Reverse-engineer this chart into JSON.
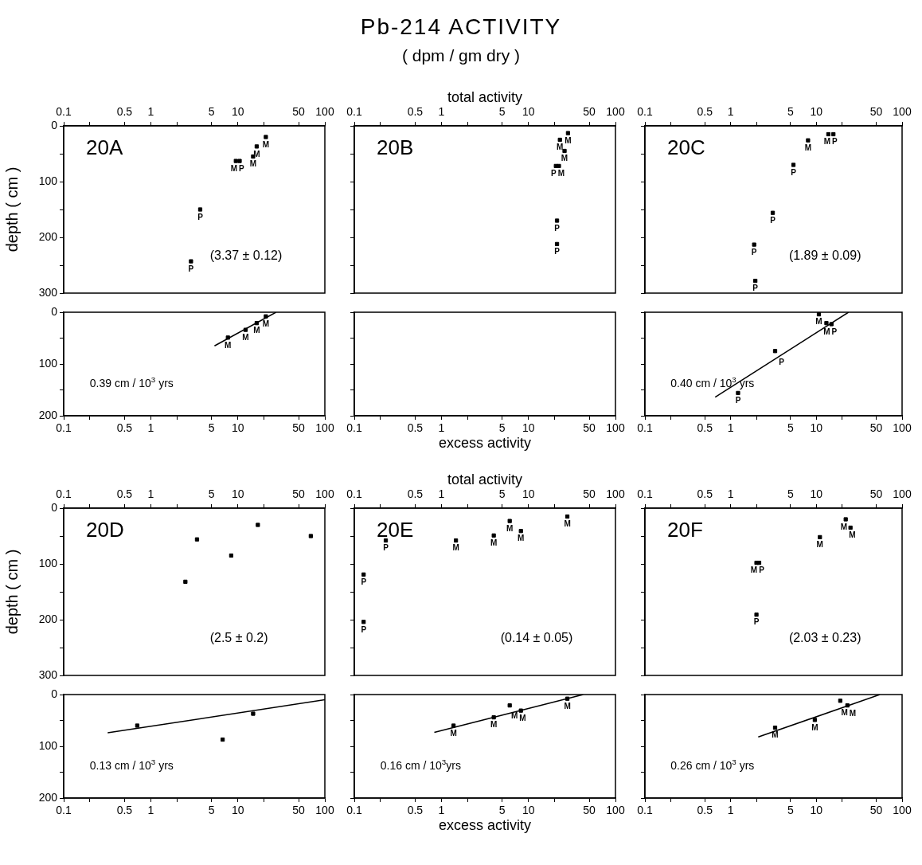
{
  "chart_data": [
    {
      "type": "scatter",
      "ylabel": "depth ( cm )",
      "log": "x",
      "xlim": [
        0.1,
        100
      ],
      "xticks": [
        0.1,
        {
          "value": 0.2,
          "label": null
        },
        0.5,
        1,
        {
          "value": 2,
          "label": null
        },
        5,
        10,
        {
          "value": 20,
          "label": null
        },
        50,
        100
      ],
      "ylim": [
        300,
        0
      ],
      "yticks": [
        0,
        {
          "value": 50,
          "label": null
        },
        100,
        {
          "value": 150,
          "label": null
        },
        200,
        {
          "value": 250,
          "label": null
        },
        300
      ],
      "marker": "square",
      "annotations": [
        "20A",
        "(3.37 ± 0.12)"
      ],
      "series": [
        {
          "name": "M",
          "color": "#000000",
          "x": [
            21,
            16.5,
            15,
            9.5
          ],
          "values": [
            20,
            37,
            55,
            63
          ]
        },
        {
          "name": "P",
          "color": "#000000",
          "x": [
            10.5,
            3.7,
            2.9
          ],
          "values": [
            63,
            150,
            243
          ]
        }
      ]
    },
    {
      "type": "scatter",
      "title": "Pb-214 ACTIVITY",
      "subtitle": "( dpm / gm dry )",
      "xlabel": "total activity",
      "tick_labels": "x",
      "log": "x",
      "xlim": [
        0.1,
        100
      ],
      "xticks": [
        0.1,
        {
          "value": 0.2,
          "label": null
        },
        0.5,
        1,
        {
          "value": 2,
          "label": null
        },
        5,
        10,
        {
          "value": 20,
          "label": null
        },
        50,
        100
      ],
      "ylim": [
        300,
        0
      ],
      "yticks": [
        0,
        {
          "value": 50,
          "label": null
        },
        100,
        {
          "value": 150,
          "label": null
        },
        200,
        {
          "value": 250,
          "label": null
        },
        300
      ],
      "marker": "square",
      "annotations": [
        "20B"
      ],
      "series": [
        {
          "name": "M",
          "color": "#000000",
          "x": [
            28.5,
            23,
            26,
            22.4
          ],
          "values": [
            13,
            25,
            45,
            72
          ]
        },
        {
          "name": "P",
          "color": "#000000",
          "x": [
            20.7,
            21.3,
            21.3
          ],
          "values": [
            72,
            170,
            212
          ]
        }
      ]
    },
    {
      "type": "scatter",
      "tick_labels": "x",
      "log": "x",
      "xlim": [
        0.1,
        100
      ],
      "xticks": [
        0.1,
        {
          "value": 0.2,
          "label": null
        },
        0.5,
        1,
        {
          "value": 2,
          "label": null
        },
        5,
        10,
        {
          "value": 20,
          "label": null
        },
        50,
        100
      ],
      "ylim": [
        300,
        0
      ],
      "yticks": [
        0,
        {
          "value": 50,
          "label": null
        },
        100,
        {
          "value": 150,
          "label": null
        },
        200,
        {
          "value": 250,
          "label": null
        },
        300
      ],
      "marker": "square",
      "annotations": [
        "20C",
        "(1.89 ± 0.09)"
      ],
      "series": [
        {
          "name": "M",
          "color": "#000000",
          "x": [
            8,
            13.8
          ],
          "values": [
            26,
            15
          ]
        },
        {
          "name": "P",
          "color": "#000000",
          "x": [
            15.8,
            5.4,
            3.1,
            1.88,
            1.94
          ],
          "values": [
            15,
            70,
            156,
            213,
            278
          ]
        }
      ]
    },
    {
      "type": "scatter",
      "log": "x",
      "xlim": [
        0.1,
        100
      ],
      "xticks": [
        0.1,
        {
          "value": 0.2,
          "label": null
        },
        0.5,
        1,
        {
          "value": 2,
          "label": null
        },
        5,
        10,
        {
          "value": 20,
          "label": null
        },
        50,
        100
      ],
      "ylim": [
        200,
        0
      ],
      "yticks": [
        0,
        {
          "value": 50,
          "label": null
        },
        100,
        {
          "value": 150,
          "label": null
        },
        200
      ],
      "marker": "square",
      "annotations": [
        "0.39 cm / 10$^{3}$ yrs"
      ],
      "series": [
        {
          "name": "M",
          "color": "#000000",
          "x": [
            7.7,
            12.3,
            16.5,
            21
          ],
          "values": [
            49,
            34,
            21,
            8
          ]
        },
        {
          "type": "line",
          "marker": "none",
          "color": "#000000",
          "x": [
            5.4,
            27.5
          ],
          "values": [
            65,
            0
          ]
        }
      ]
    },
    {
      "type": "scatter",
      "xlabel": "excess activity",
      "tick_labels": "x",
      "log": "x",
      "xlim": [
        0.1,
        100
      ],
      "xticks": [
        0.1,
        {
          "value": 0.2,
          "label": null
        },
        0.5,
        1,
        {
          "value": 2,
          "label": null
        },
        5,
        10,
        {
          "value": 20,
          "label": null
        },
        50,
        100
      ],
      "ylim": [
        200,
        0
      ],
      "yticks": [
        0,
        {
          "value": 50,
          "label": null
        },
        100,
        {
          "value": 150,
          "label": null
        },
        200
      ]
    },
    {
      "type": "scatter",
      "tick_labels": "x",
      "log": "x",
      "xlim": [
        0.1,
        100
      ],
      "xticks": [
        0.1,
        {
          "value": 0.2,
          "label": null
        },
        0.5,
        1,
        {
          "value": 2,
          "label": null
        },
        5,
        10,
        {
          "value": 20,
          "label": null
        },
        50,
        100
      ],
      "ylim": [
        200,
        0
      ],
      "yticks": [
        0,
        {
          "value": 50,
          "label": null
        },
        100,
        {
          "value": 150,
          "label": null
        },
        200
      ],
      "marker": "square",
      "annotations": [
        "0.40 cm / 10$^{3}$ yrs"
      ],
      "series": [
        {
          "name": "M",
          "color": "#000000",
          "x": [
            10.7,
            13.1
          ],
          "values": [
            4,
            21
          ]
        },
        {
          "name": "P",
          "color": "#000000",
          "x": [
            15,
            3.3,
            1.22
          ],
          "values": [
            23,
            75,
            156
          ]
        },
        {
          "type": "line",
          "marker": "none",
          "color": "#000000",
          "x": [
            0.66,
            23.7
          ],
          "values": [
            164,
            0
          ]
        }
      ]
    },
    {
      "type": "scatter",
      "ylabel": "depth ( cm )",
      "log": "x",
      "xlim": [
        0.1,
        100
      ],
      "xticks": [
        0.1,
        {
          "value": 0.2,
          "label": null
        },
        0.5,
        1,
        {
          "value": 2,
          "label": null
        },
        5,
        10,
        {
          "value": 20,
          "label": null
        },
        50,
        100
      ],
      "ylim": [
        300,
        0
      ],
      "yticks": [
        0,
        {
          "value": 50,
          "label": null
        },
        100,
        {
          "value": 150,
          "label": null
        },
        200,
        {
          "value": 250,
          "label": null
        },
        300
      ],
      "marker": "square",
      "annotations": [
        "20D",
        "(2.5 ± 0.2)"
      ],
      "series": [
        {
          "color": "#000000",
          "x": [
            3.4,
            8.4,
            2.5,
            17,
            69
          ],
          "values": [
            56,
            85,
            132,
            30,
            50
          ]
        }
      ]
    },
    {
      "type": "scatter",
      "xlabel": "total activity",
      "tick_labels": "x",
      "log": "x",
      "xlim": [
        0.1,
        100
      ],
      "xticks": [
        0.1,
        {
          "value": 0.2,
          "label": null
        },
        0.5,
        1,
        {
          "value": 2,
          "label": null
        },
        5,
        10,
        {
          "value": 20,
          "label": null
        },
        50,
        100
      ],
      "ylim": [
        300,
        0
      ],
      "yticks": [
        0,
        {
          "value": 50,
          "label": null
        },
        100,
        {
          "value": 150,
          "label": null
        },
        200,
        {
          "value": 250,
          "label": null
        },
        300
      ],
      "marker": "square",
      "annotations": [
        "20E",
        "(0.14 ± 0.05)"
      ],
      "series": [
        {
          "name": "M",
          "color": "#000000",
          "x": [
            1.47,
            4,
            6.1,
            8.2,
            28
          ],
          "values": [
            58,
            49,
            23,
            41,
            15
          ]
        },
        {
          "name": "P",
          "color": "#000000",
          "x": [
            0.23,
            0.128,
            0.128
          ],
          "values": [
            58,
            119,
            204
          ]
        }
      ]
    },
    {
      "type": "scatter",
      "tick_labels": "x",
      "log": "x",
      "xlim": [
        0.1,
        100
      ],
      "xticks": [
        0.1,
        {
          "value": 0.2,
          "label": null
        },
        0.5,
        1,
        {
          "value": 2,
          "label": null
        },
        5,
        10,
        {
          "value": 20,
          "label": null
        },
        50,
        100
      ],
      "ylim": [
        300,
        0
      ],
      "yticks": [
        0,
        {
          "value": 50,
          "label": null
        },
        100,
        {
          "value": 150,
          "label": null
        },
        200,
        {
          "value": 250,
          "label": null
        },
        300
      ],
      "marker": "square",
      "annotations": [
        "20F",
        "(2.03 ± 0.23)"
      ],
      "series": [
        {
          "name": "M",
          "color": "#000000",
          "x": [
            22,
            25,
            11,
            2.0
          ],
          "values": [
            20,
            35,
            52,
            98
          ]
        },
        {
          "name": "P",
          "color": "#000000",
          "x": [
            2.15,
            2.0
          ],
          "values": [
            98,
            191
          ]
        }
      ]
    },
    {
      "type": "scatter",
      "log": "x",
      "xlim": [
        0.1,
        100
      ],
      "xticks": [
        0.1,
        {
          "value": 0.2,
          "label": null
        },
        0.5,
        1,
        {
          "value": 2,
          "label": null
        },
        5,
        10,
        {
          "value": 20,
          "label": null
        },
        50,
        100
      ],
      "ylim": [
        200,
        0
      ],
      "yticks": [
        0,
        {
          "value": 50,
          "label": null
        },
        100,
        {
          "value": 150,
          "label": null
        },
        200
      ],
      "marker": "square",
      "annotations": [
        "0.13 cm / 10$^{3}$ yrs"
      ],
      "series": [
        {
          "color": "#000000",
          "x": [
            0.7,
            6.7,
            15
          ],
          "values": [
            60,
            87,
            37
          ]
        },
        {
          "type": "line",
          "marker": "none",
          "color": "#000000",
          "x": [
            0.32,
            100
          ],
          "values": [
            74,
            10
          ]
        }
      ]
    },
    {
      "type": "scatter",
      "xlabel": "excess activity",
      "tick_labels": "x",
      "log": "x",
      "xlim": [
        0.1,
        100
      ],
      "xticks": [
        0.1,
        {
          "value": 0.2,
          "label": null
        },
        0.5,
        1,
        {
          "value": 2,
          "label": null
        },
        5,
        10,
        {
          "value": 20,
          "label": null
        },
        50,
        100
      ],
      "ylim": [
        200,
        0
      ],
      "yticks": [
        0,
        {
          "value": 50,
          "label": null
        },
        100,
        {
          "value": 150,
          "label": null
        },
        200
      ],
      "marker": "square",
      "annotations": [
        "0.16 cm / 10$^{3}$yrs"
      ],
      "series": [
        {
          "name": "M",
          "color": "#000000",
          "x": [
            1.38,
            4,
            6.1,
            8.2,
            28
          ],
          "values": [
            60,
            44,
            21,
            31,
            8
          ]
        },
        {
          "type": "line",
          "marker": "none",
          "color": "#000000",
          "x": [
            0.83,
            42.6
          ],
          "values": [
            73,
            0
          ]
        }
      ]
    },
    {
      "type": "scatter",
      "tick_labels": "x",
      "log": "x",
      "xlim": [
        0.1,
        100
      ],
      "xticks": [
        0.1,
        {
          "value": 0.2,
          "label": null
        },
        0.5,
        1,
        {
          "value": 2,
          "label": null
        },
        5,
        10,
        {
          "value": 20,
          "label": null
        },
        50,
        100
      ],
      "ylim": [
        200,
        0
      ],
      "yticks": [
        0,
        {
          "value": 50,
          "label": null
        },
        100,
        {
          "value": 150,
          "label": null
        },
        200
      ],
      "marker": "square",
      "annotations": [
        "0.26 cm / 10$^{3}$ yrs"
      ],
      "series": [
        {
          "name": "M",
          "color": "#000000",
          "x": [
            3.3,
            9.6,
            19,
            23
          ],
          "values": [
            64,
            49,
            12,
            21
          ]
        },
        {
          "type": "line",
          "marker": "none",
          "color": "#000000",
          "x": [
            2.1,
            55
          ],
          "values": [
            82,
            0
          ]
        }
      ]
    }
  ]
}
